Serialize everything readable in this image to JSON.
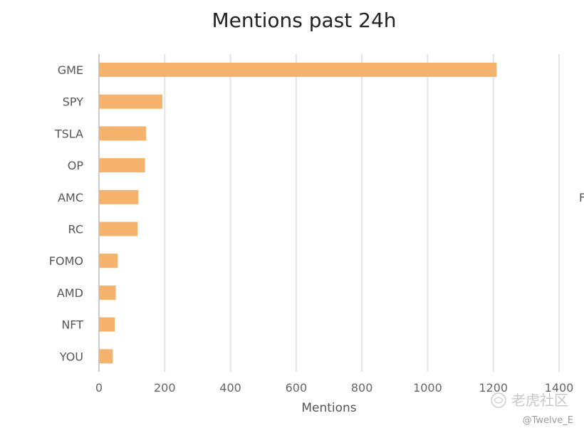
{
  "chart_data": {
    "type": "bar",
    "orientation": "horizontal",
    "title": "Mentions past 24h",
    "xlabel": "Mentions",
    "ylabel": "",
    "categories": [
      "GME",
      "SPY",
      "TSLA",
      "OP",
      "AMC",
      "RC",
      "FOMO",
      "AMD",
      "NFT",
      "YOU"
    ],
    "values": [
      1210,
      193,
      143,
      140,
      120,
      117,
      57,
      51,
      48,
      42
    ],
    "xlim": [
      0,
      1400
    ],
    "xticks": [
      0,
      200,
      400,
      600,
      800,
      1000,
      1200,
      1400
    ],
    "grid": true,
    "bar_color": "#f4b26d",
    "legend": "none"
  },
  "edge_glyph": "F",
  "watermark": {
    "logo_text": "老虎社区",
    "user": "@Twelve_E"
  }
}
